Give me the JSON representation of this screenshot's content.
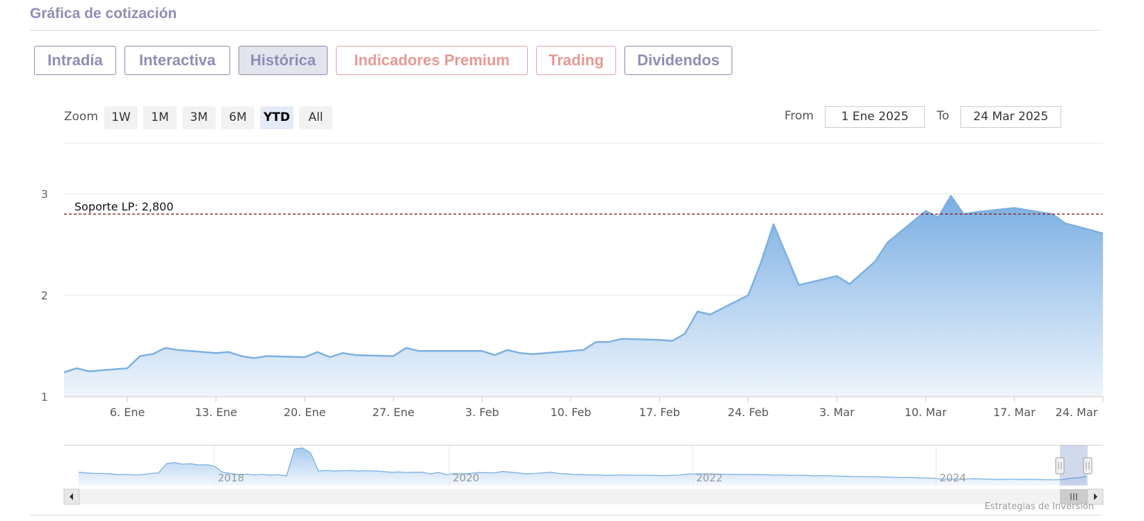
{
  "header": {
    "title": "Gráfica de cotización"
  },
  "tabs": [
    {
      "label": "Intradía"
    },
    {
      "label": "Interactiva"
    },
    {
      "label": "Histórica",
      "active": true
    },
    {
      "label": "Indicadores Premium",
      "premium": true
    },
    {
      "label": "Trading",
      "premium": true
    },
    {
      "label": "Dividendos"
    }
  ],
  "toolbar": {
    "zoom_label": "Zoom",
    "zoom_buttons": [
      "1W",
      "1M",
      "3M",
      "6M",
      "YTD",
      "All"
    ],
    "zoom_active": "YTD",
    "from_label": "From",
    "from_value": "1 Ene 2025",
    "to_label": "To",
    "to_value": "24 Mar 2025"
  },
  "chart_data": {
    "type": "area",
    "title": "",
    "xlabel": "",
    "ylabel": "",
    "ylim": [
      1,
      3.5
    ],
    "yticks": [
      "1",
      "2",
      "3"
    ],
    "x_tick_labels": [
      "6. Ene",
      "13. Ene",
      "20. Ene",
      "27. Ene",
      "3. Feb",
      "10. Feb",
      "17. Feb",
      "24. Feb",
      "3. Mar",
      "10. Mar",
      "17. Mar",
      "24. Mar"
    ],
    "x_range_dates": [
      "2025-01-01",
      "2025-03-24"
    ],
    "grid": true,
    "colors": {
      "line": "#7cb0e0",
      "fill_top": "#79aee3",
      "fill_bottom": "#eef5fc",
      "support": "#8b1a1a"
    },
    "support_line": {
      "label": "Soporte LP: 2,800",
      "value": 2.8
    },
    "series": [
      {
        "x": [
          "2025-01-01",
          "2025-01-02",
          "2025-01-03",
          "2025-01-06",
          "2025-01-07",
          "2025-01-08",
          "2025-01-09",
          "2025-01-10",
          "2025-01-13",
          "2025-01-14",
          "2025-01-15",
          "2025-01-16",
          "2025-01-17",
          "2025-01-20",
          "2025-01-21",
          "2025-01-22",
          "2025-01-23",
          "2025-01-24",
          "2025-01-27",
          "2025-01-28",
          "2025-01-29",
          "2025-01-30",
          "2025-01-31",
          "2025-02-03",
          "2025-02-04",
          "2025-02-05",
          "2025-02-06",
          "2025-02-07",
          "2025-02-10",
          "2025-02-11",
          "2025-02-12",
          "2025-02-13",
          "2025-02-14",
          "2025-02-17",
          "2025-02-18",
          "2025-02-19",
          "2025-02-20",
          "2025-02-21",
          "2025-02-24",
          "2025-02-25",
          "2025-02-26",
          "2025-02-27",
          "2025-02-28",
          "2025-03-03",
          "2025-03-04",
          "2025-03-05",
          "2025-03-06",
          "2025-03-07",
          "2025-03-10",
          "2025-03-11",
          "2025-03-12",
          "2025-03-13",
          "2025-03-14",
          "2025-03-17",
          "2025-03-18",
          "2025-03-19",
          "2025-03-20",
          "2025-03-21",
          "2025-03-24"
        ],
        "values": [
          1.24,
          1.28,
          1.25,
          1.28,
          1.4,
          1.42,
          1.48,
          1.46,
          1.43,
          1.44,
          1.4,
          1.38,
          1.4,
          1.39,
          1.44,
          1.39,
          1.43,
          1.41,
          1.4,
          1.48,
          1.45,
          1.45,
          1.45,
          1.45,
          1.41,
          1.46,
          1.43,
          1.42,
          1.45,
          1.46,
          1.54,
          1.54,
          1.57,
          1.56,
          1.55,
          1.62,
          1.84,
          1.81,
          2.0,
          2.32,
          2.7,
          2.4,
          2.1,
          2.19,
          2.11,
          2.22,
          2.33,
          2.52,
          2.83,
          2.77,
          2.98,
          2.8,
          2.82,
          2.86,
          2.84,
          2.82,
          2.8,
          2.71,
          2.61
        ]
      }
    ],
    "navigator": {
      "year_labels": [
        "2018",
        "2020",
        "2022",
        "2024"
      ],
      "values": [
        0.55,
        0.52,
        0.5,
        0.5,
        0.48,
        0.45,
        0.46,
        0.44,
        0.45,
        0.5,
        0.52,
        0.9,
        0.95,
        0.88,
        0.9,
        0.85,
        0.86,
        0.8,
        0.55,
        0.5,
        0.45,
        0.47,
        0.44,
        0.46,
        0.43,
        0.45,
        0.4,
        1.5,
        1.55,
        1.35,
        0.6,
        0.62,
        0.6,
        0.61,
        0.62,
        0.6,
        0.61,
        0.6,
        0.58,
        0.55,
        0.56,
        0.54,
        0.55,
        0.55,
        0.48,
        0.54,
        0.45,
        0.5,
        0.48,
        0.5,
        0.54,
        0.53,
        0.52,
        0.58,
        0.55,
        0.52,
        0.48,
        0.5,
        0.52,
        0.55,
        0.5,
        0.48,
        0.46,
        0.45,
        0.44,
        0.44,
        0.42,
        0.43,
        0.44,
        0.43,
        0.43,
        0.43,
        0.42,
        0.41,
        0.42,
        0.43,
        0.47,
        0.48,
        0.48,
        0.48,
        0.47,
        0.46,
        0.46,
        0.45,
        0.46,
        0.45,
        0.45,
        0.43,
        0.44,
        0.42,
        0.43,
        0.42,
        0.4,
        0.41,
        0.4,
        0.39,
        0.38,
        0.37,
        0.37,
        0.36,
        0.36,
        0.35,
        0.34,
        0.33,
        0.34,
        0.32,
        0.31,
        0.3,
        0.26,
        0.27,
        0.26,
        0.27,
        0.28,
        0.27,
        0.26,
        0.25,
        0.26,
        0.26,
        0.25,
        0.26,
        0.25,
        0.24,
        0.24,
        0.25,
        0.3,
        0.32,
        0.38
      ]
    }
  },
  "footer": {
    "credit": "Estrategias de Inversión"
  }
}
